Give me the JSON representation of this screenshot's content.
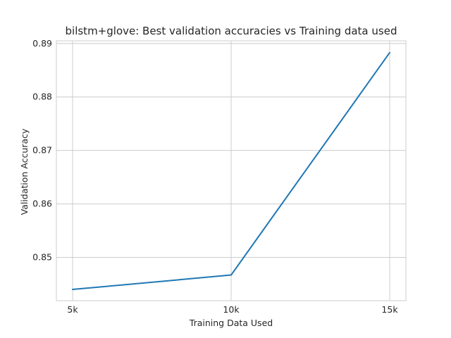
{
  "chart_data": {
    "type": "line",
    "title": "bilstm+glove: Best validation accuracies vs Training data used",
    "xlabel": "Training Data Used",
    "ylabel": "Validation Accuracy",
    "categories": [
      "5k",
      "10k",
      "15k"
    ],
    "series": [
      {
        "values": [
          0.844,
          0.8467,
          0.8883
        ],
        "color": "#1f77b4"
      }
    ],
    "ylim": [
      0.8419,
      0.8905
    ],
    "yticks": [
      0.85,
      0.86,
      0.87,
      0.88,
      0.89
    ],
    "ytick_labels": [
      "0.85",
      "0.86",
      "0.87",
      "0.88",
      "0.89"
    ],
    "grid": true,
    "legend": "none"
  }
}
